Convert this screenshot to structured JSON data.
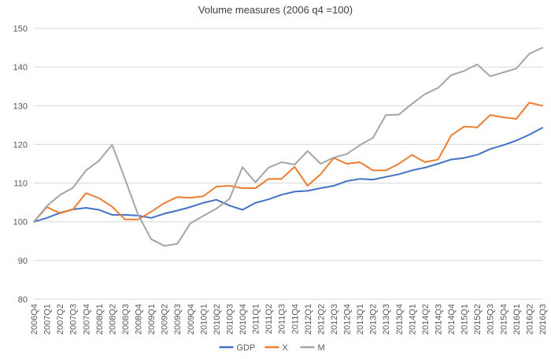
{
  "chart_data": {
    "type": "line",
    "title": "Volume measures (2006 q4 =100)",
    "xlabel": "",
    "ylabel": "",
    "ylim": [
      80,
      150
    ],
    "yticks": [
      80,
      90,
      100,
      110,
      120,
      130,
      140,
      150
    ],
    "grid": true,
    "legend_position": "bottom",
    "categories": [
      "2006Q4",
      "2007Q1",
      "2007Q2",
      "2007Q3",
      "2007Q4",
      "2008Q1",
      "2008Q2",
      "2008Q3",
      "2008Q4",
      "2009Q1",
      "2009Q2",
      "2009Q3",
      "2009Q4",
      "2010Q1",
      "2010Q2",
      "2010Q3",
      "2010Q4",
      "2011Q1",
      "2011Q2",
      "2011Q3",
      "2011Q4",
      "2012Q1",
      "2012Q2",
      "2012Q3",
      "2012Q4",
      "2013Q1",
      "2013Q2",
      "2013Q3",
      "2013Q4",
      "2014Q1",
      "2014Q2",
      "2014Q3",
      "2014Q4",
      "2015Q1",
      "2015Q2",
      "2015Q3",
      "2015Q4",
      "2016Q1",
      "2016Q2",
      "2016Q3"
    ],
    "series": [
      {
        "name": "GDP",
        "color": "#4472C4",
        "values": [
          100,
          101,
          102.3,
          103.2,
          103.6,
          103.1,
          101.8,
          101.8,
          101.6,
          101.0,
          102.1,
          102.9,
          103.8,
          104.9,
          105.7,
          104.2,
          103.1,
          104.9,
          105.8,
          107.0,
          107.8,
          108.0,
          108.7,
          109.3,
          110.5,
          111.1,
          110.9,
          111.6,
          112.3,
          113.3,
          114.0,
          115.0,
          116.1,
          116.5,
          117.3,
          118.8,
          119.8,
          121.0,
          122.5,
          124.3
        ]
      },
      {
        "name": "X",
        "color": "#ED7D31",
        "values": [
          100,
          103.8,
          102.2,
          103.2,
          107.4,
          106.1,
          103.9,
          100.6,
          100.6,
          102.6,
          104.8,
          106.4,
          106.2,
          106.6,
          109.1,
          109.3,
          108.7,
          108.7,
          111.1,
          111.1,
          114.2,
          109.3,
          112.3,
          116.5,
          115.0,
          115.4,
          113.3,
          113.3,
          115.0,
          117.3,
          115.4,
          116.1,
          122.3,
          124.6,
          124.4,
          127.6,
          127.0,
          126.6,
          130.8,
          130.0
        ]
      },
      {
        "name": "M",
        "color": "#A5A5A5",
        "values": [
          100,
          104.1,
          106.9,
          108.8,
          113.3,
          115.8,
          119.9,
          111.0,
          101.8,
          95.5,
          93.8,
          94.3,
          99.6,
          101.5,
          103.4,
          105.9,
          114.1,
          110.2,
          114.0,
          115.4,
          114.8,
          118.3,
          115.0,
          116.6,
          117.5,
          119.8,
          121.7,
          127.6,
          127.7,
          130.5,
          133.0,
          134.6,
          137.9,
          139.0,
          140.7,
          137.6,
          138.6,
          139.6,
          143.4,
          145.0
        ]
      }
    ]
  }
}
